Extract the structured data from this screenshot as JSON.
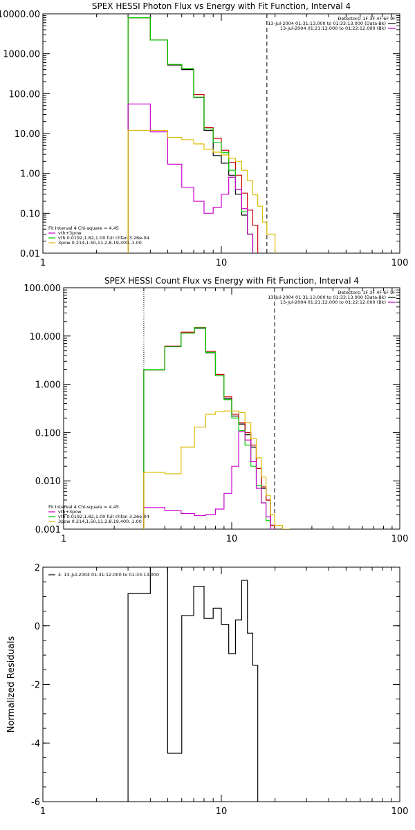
{
  "chart_data": [
    {
      "type": "line",
      "title": "SPEX HESSI Photon Flux vs Energy with Fit Function, Interval 4",
      "xscale": "log",
      "yscale": "log",
      "xlim": [
        1,
        100
      ],
      "ylim": [
        0.01,
        10000
      ],
      "x_ticks": [
        1,
        10,
        100
      ],
      "x_tick_labels": [
        "1",
        "10",
        "100"
      ],
      "y_ticks": [
        0.01,
        0.1,
        1,
        10,
        100,
        1000,
        10000
      ],
      "y_tick_labels": [
        "0.01",
        "0.10",
        "1.00",
        "10.00",
        "100.00",
        "1000.00",
        "10000.00"
      ],
      "bin_edges": [
        3,
        4,
        5,
        6,
        7,
        8,
        9,
        10,
        11,
        12,
        13,
        14,
        15,
        16,
        17,
        18,
        20
      ],
      "vlines": [
        {
          "x": 3,
          "style": "dotted"
        },
        {
          "x": 18,
          "style": "dashed"
        }
      ],
      "info_lines": [
        "Detectors: 1F 3F 4F 6F 9F",
        "13-Jul-2004 01:31:13.000 to 01:33:13.000 (Data-Bk)",
        "13-Jul-2004 01:21:12.000 to 01:22:12.000 (Bk)"
      ],
      "info_colors": [
        "",
        "#000000",
        "#cc00cc"
      ],
      "legend_lines": [
        "Fit Interval 4   Chi-square = 4.45",
        "vth+3pow",
        "vth 0.0192,1.82,1.00  full chfan 3.26e-04",
        "3pow 0.214,1.50,11.2,8.19,400.,1.00"
      ],
      "legend_colors": [
        "",
        "#cc00cc",
        "#00cc00",
        "#ddbb00"
      ],
      "series": [
        {
          "color": "#000000",
          "values": [
            8000,
            2200,
            520,
            400,
            80,
            12,
            2.8,
            1.8,
            0.9,
            0.3,
            0.09,
            0.03,
            0.008
          ]
        },
        {
          "color": "#cc0000",
          "values": [
            8000,
            2200,
            540,
            420,
            95,
            14,
            7.5,
            3.8,
            1.9,
            0.9,
            0.32,
            0.12,
            0.05
          ]
        },
        {
          "color": "#00cc00",
          "values": [
            8000,
            2200,
            540,
            420,
            82,
            13,
            6.0,
            3.3,
            1.2,
            0.4,
            0.11,
            0.03,
            0.008
          ]
        },
        {
          "color": "#cc00cc",
          "values": [
            55,
            11,
            1.7,
            0.45,
            0.2,
            0.1,
            0.14,
            0.3,
            0.8,
            0.4,
            0.13,
            0.03,
            0.008
          ]
        },
        {
          "color": "#ddbb00",
          "values": [
            12,
            12,
            8,
            7,
            5.5,
            4.0,
            3.4,
            2.9,
            2.4,
            2.0,
            1.2,
            0.65,
            0.29,
            0.15,
            0.06,
            0.03
          ]
        }
      ]
    },
    {
      "type": "line",
      "title": "SPEX HESSI Count Flux vs Energy with Fit Function, Interval 4",
      "xscale": "log",
      "yscale": "log",
      "xlim": [
        1,
        100
      ],
      "ylim": [
        0.001,
        100
      ],
      "x_ticks": [
        1,
        10,
        100
      ],
      "x_tick_labels": [
        "1",
        "10",
        "100"
      ],
      "y_ticks": [
        0.001,
        0.01,
        0.1,
        1,
        10,
        100
      ],
      "y_tick_labels": [
        "0.001",
        "0.010",
        "0.100",
        "1.000",
        "10.000",
        "100.000"
      ],
      "bin_edges": [
        3,
        4,
        5,
        6,
        7,
        8,
        9,
        10,
        11,
        12,
        13,
        14,
        15,
        16,
        17,
        18,
        20,
        22
      ],
      "vlines": [
        {
          "x": 3,
          "style": "dotted"
        },
        {
          "x": 18,
          "style": "dashed"
        }
      ],
      "info_lines": [
        "Detectors: 1F 3F 4F 6F 9F",
        "13-Jul-2004 01:31:13.000 to 01:33:13.000 (Data-Bk)",
        "13-Jul-2004 01:21:12.000 to 01:22:12.000 (Bk)"
      ],
      "info_colors": [
        "",
        "#000000",
        "#cc00cc"
      ],
      "legend_lines": [
        "Fit Interval 4   Chi-square = 4.45",
        "vth+3pow",
        "vth 0.0192,1.82,1.00  full chfan 3.26e-04",
        "3pow 0.214,1.50,11.2,8.19,400.,1.00"
      ],
      "legend_colors": [
        "",
        "#cc00cc",
        "#00cc00",
        "#ddbb00"
      ],
      "series": [
        {
          "color": "#000000",
          "values": [
            2.0,
            6.0,
            11.5,
            14.5,
            4.5,
            1.5,
            0.5,
            0.22,
            0.15,
            0.09,
            0.05,
            0.018,
            0.007,
            0.004,
            0.0012
          ]
        },
        {
          "color": "#cc0000",
          "values": [
            2.0,
            6.2,
            12.0,
            15.0,
            4.8,
            1.6,
            0.55,
            0.24,
            0.16,
            0.1,
            0.055,
            0.018,
            0.0075,
            0.004,
            0.0012
          ]
        },
        {
          "color": "#00cc00",
          "values": [
            2.0,
            6.0,
            11.5,
            14.8,
            4.6,
            1.5,
            0.48,
            0.2,
            0.11,
            0.055,
            0.02,
            0.008,
            0.0035,
            0.0015,
            0.001
          ]
        },
        {
          "color": "#cc00cc",
          "values": [
            0.0028,
            0.0024,
            0.0021,
            0.0019,
            0.002,
            0.0026,
            0.0055,
            0.02,
            0.105,
            0.07,
            0.025,
            0.007,
            0.0035,
            0.0018,
            0.001
          ]
        },
        {
          "color": "#ddbb00",
          "values": [
            0.015,
            0.014,
            0.05,
            0.13,
            0.24,
            0.27,
            0.28,
            0.28,
            0.26,
            0.16,
            0.075,
            0.03,
            0.012,
            0.005,
            0.002,
            0.0012,
            0.001
          ]
        }
      ]
    },
    {
      "type": "line",
      "title": "",
      "ylabel": "Normalized Residuals",
      "xscale": "log",
      "yscale": "linear",
      "xlim": [
        1,
        100
      ],
      "ylim": [
        -6,
        2
      ],
      "x_ticks": [
        1,
        10,
        100
      ],
      "x_tick_labels": [
        "1",
        "10",
        "100"
      ],
      "y_ticks": [
        -6,
        -4,
        -2,
        0,
        2
      ],
      "y_tick_labels": [
        "-6",
        "-4",
        "-2",
        "0",
        "2"
      ],
      "bin_edges": [
        3,
        4,
        5,
        6,
        7,
        8,
        9,
        10,
        11,
        12,
        13,
        14,
        15,
        16,
        17,
        18
      ],
      "legend_lines": [
        "4. 13-Jul-2004 01:31:12.000 to 01:33:13.000"
      ],
      "legend_colors": [
        "#000000"
      ],
      "series": [
        {
          "color": "#000000",
          "values": [
            1.1,
            2.05,
            -4.35,
            0.35,
            1.35,
            0.25,
            0.6,
            0.05,
            -0.95,
            0.2,
            1.55,
            -0.25,
            -1.35
          ]
        }
      ]
    }
  ]
}
